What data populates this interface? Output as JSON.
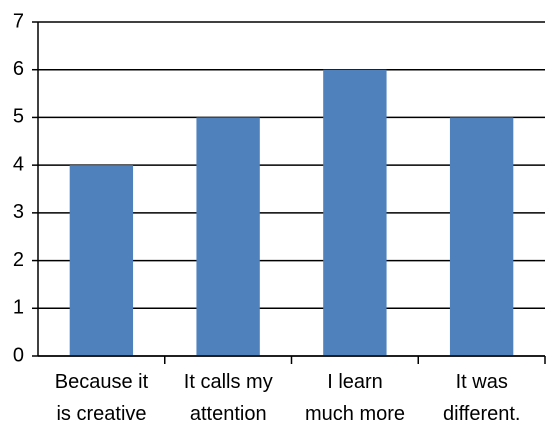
{
  "chart_data": {
    "type": "bar",
    "categories": [
      "Because it\nis creative",
      "It calls my\nattention",
      "I learn\nmuch more",
      "It was\ndifferent."
    ],
    "values": [
      4,
      5,
      6,
      5
    ],
    "color": "#4f81bd",
    "ylim": [
      0,
      7
    ],
    "yticks": [
      0,
      1,
      2,
      3,
      4,
      5,
      6,
      7
    ],
    "grid": true
  }
}
